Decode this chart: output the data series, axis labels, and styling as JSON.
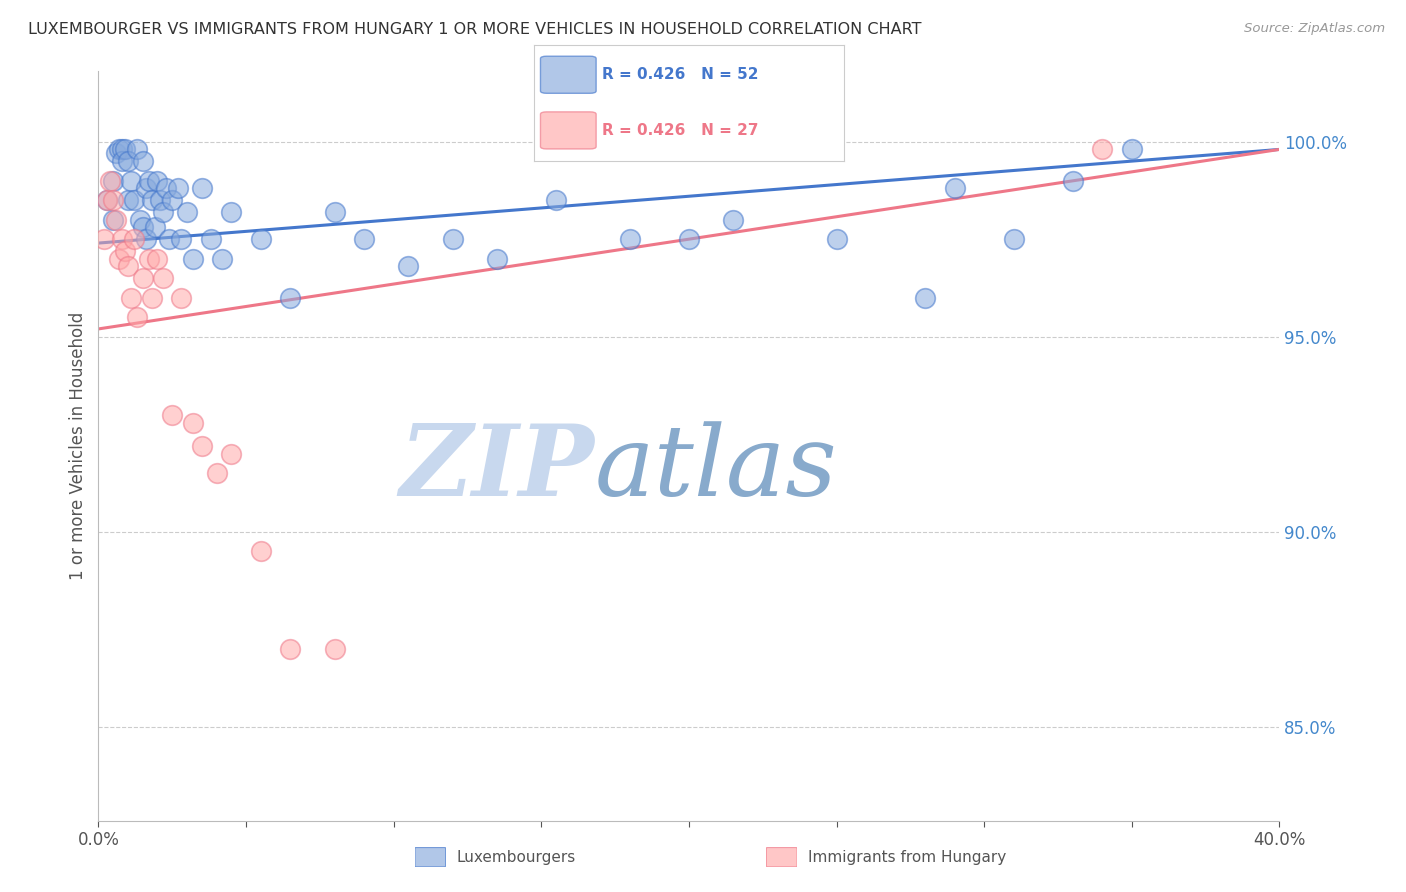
{
  "title": "LUXEMBOURGER VS IMMIGRANTS FROM HUNGARY 1 OR MORE VEHICLES IN HOUSEHOLD CORRELATION CHART",
  "source": "Source: ZipAtlas.com",
  "ylabel": "1 or more Vehicles in Household",
  "xlim": [
    0.0,
    0.4
  ],
  "ylim": [
    0.826,
    1.018
  ],
  "x_ticks": [
    0.0,
    0.05,
    0.1,
    0.15,
    0.2,
    0.25,
    0.3,
    0.35,
    0.4
  ],
  "y_ticks_right": [
    0.85,
    0.9,
    0.95,
    1.0
  ],
  "y_tick_labels_right": [
    "85.0%",
    "90.0%",
    "95.0%",
    "100.0%"
  ],
  "blue_color": "#88AADD",
  "pink_color": "#FFAAAA",
  "blue_edge_color": "#4477CC",
  "pink_edge_color": "#EE7788",
  "blue_line_color": "#4477CC",
  "pink_line_color": "#EE7788",
  "legend_r_blue": "R = 0.426",
  "legend_n_blue": "N = 52",
  "legend_r_pink": "R = 0.426",
  "legend_n_pink": "N = 27",
  "watermark_zip": "ZIP",
  "watermark_atlas": "atlas",
  "blue_scatter_x": [
    0.003,
    0.005,
    0.005,
    0.006,
    0.007,
    0.008,
    0.008,
    0.009,
    0.01,
    0.01,
    0.011,
    0.012,
    0.013,
    0.014,
    0.015,
    0.015,
    0.016,
    0.016,
    0.017,
    0.018,
    0.019,
    0.02,
    0.021,
    0.022,
    0.023,
    0.024,
    0.025,
    0.027,
    0.028,
    0.03,
    0.032,
    0.035,
    0.038,
    0.042,
    0.045,
    0.055,
    0.065,
    0.08,
    0.09,
    0.105,
    0.12,
    0.135,
    0.155,
    0.18,
    0.2,
    0.215,
    0.25,
    0.28,
    0.29,
    0.31,
    0.33,
    0.35
  ],
  "blue_scatter_y": [
    0.985,
    0.99,
    0.98,
    0.997,
    0.998,
    0.998,
    0.995,
    0.998,
    0.995,
    0.985,
    0.99,
    0.985,
    0.998,
    0.98,
    0.978,
    0.995,
    0.988,
    0.975,
    0.99,
    0.985,
    0.978,
    0.99,
    0.985,
    0.982,
    0.988,
    0.975,
    0.985,
    0.988,
    0.975,
    0.982,
    0.97,
    0.988,
    0.975,
    0.97,
    0.982,
    0.975,
    0.96,
    0.982,
    0.975,
    0.968,
    0.975,
    0.97,
    0.985,
    0.975,
    0.975,
    0.98,
    0.975,
    0.96,
    0.988,
    0.975,
    0.99,
    0.998
  ],
  "pink_scatter_x": [
    0.002,
    0.003,
    0.004,
    0.005,
    0.006,
    0.007,
    0.008,
    0.009,
    0.01,
    0.011,
    0.012,
    0.013,
    0.015,
    0.017,
    0.018,
    0.02,
    0.022,
    0.025,
    0.028,
    0.032,
    0.035,
    0.04,
    0.045,
    0.055,
    0.065,
    0.08,
    0.34
  ],
  "pink_scatter_y": [
    0.975,
    0.985,
    0.99,
    0.985,
    0.98,
    0.97,
    0.975,
    0.972,
    0.968,
    0.96,
    0.975,
    0.955,
    0.965,
    0.97,
    0.96,
    0.97,
    0.965,
    0.93,
    0.96,
    0.928,
    0.922,
    0.915,
    0.92,
    0.895,
    0.87,
    0.87,
    0.998
  ],
  "blue_line_x": [
    0.0,
    0.4
  ],
  "blue_line_y": [
    0.974,
    0.998
  ],
  "pink_line_x": [
    0.0,
    0.4
  ],
  "pink_line_y": [
    0.952,
    0.998
  ],
  "background_color": "#FFFFFF",
  "grid_color": "#CCCCCC",
  "title_color": "#333333",
  "axis_color": "#BBBBBB",
  "right_axis_color": "#4488CC",
  "watermark_color_zip": "#C8D8EE",
  "watermark_color_atlas": "#88AACC"
}
